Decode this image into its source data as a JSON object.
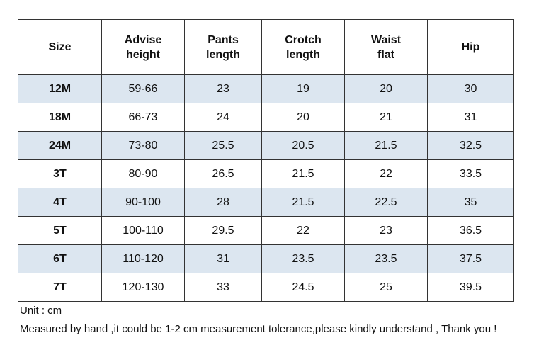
{
  "table": {
    "headers": [
      [
        "Size"
      ],
      [
        "Advise",
        "height"
      ],
      [
        "Pants",
        "length"
      ],
      [
        "Crotch",
        "length"
      ],
      [
        "Waist",
        "flat"
      ],
      [
        "Hip"
      ]
    ],
    "rows": [
      [
        "12M",
        "59-66",
        "23",
        "19",
        "20",
        "30"
      ],
      [
        "18M",
        "66-73",
        "24",
        "20",
        "21",
        "31"
      ],
      [
        "24M",
        "73-80",
        "25.5",
        "20.5",
        "21.5",
        "32.5"
      ],
      [
        "3T",
        "80-90",
        "26.5",
        "21.5",
        "22",
        "33.5"
      ],
      [
        "4T",
        "90-100",
        "28",
        "21.5",
        "22.5",
        "35"
      ],
      [
        "5T",
        "100-110",
        "29.5",
        "22",
        "23",
        "36.5"
      ],
      [
        "6T",
        "110-120",
        "31",
        "23.5",
        "23.5",
        "37.5"
      ],
      [
        "7T",
        "120-130",
        "33",
        "24.5",
        "25",
        "39.5"
      ]
    ]
  },
  "notes": {
    "unit": "Unit : cm",
    "tolerance": "Measured by hand ,it could be 1-2 cm measurement tolerance,please kindly understand , Thank you !"
  },
  "colors": {
    "shaded_row": "#dce6f0",
    "border": "#333333"
  }
}
